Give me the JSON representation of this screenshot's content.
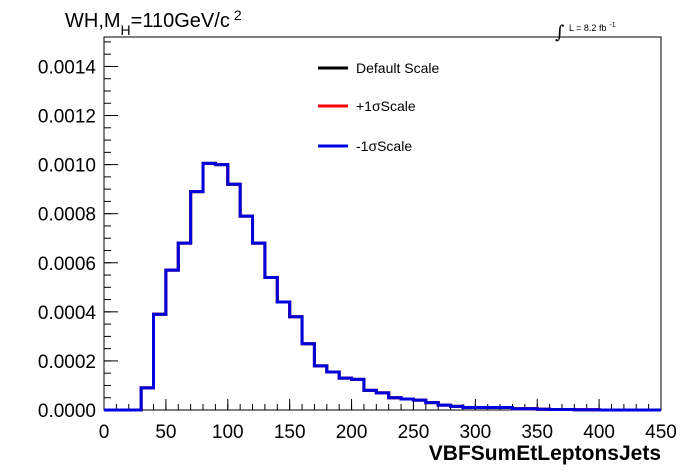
{
  "chart_data": {
    "type": "line",
    "title": "WH,M",
    "title_sub": "H",
    "title_rest": "=110GeV/c",
    "title_sup": "2",
    "lumi_label": "L = 8.2 fb",
    "lumi_sup": "-1",
    "lumi_integral": "∫",
    "xlabel": "VBFSumEtLeptonsJets",
    "ylabel": "",
    "xlim": [
      0,
      450
    ],
    "ylim": [
      0,
      0.00152
    ],
    "xticks": [
      "0",
      "50",
      "100",
      "150",
      "200",
      "250",
      "300",
      "350",
      "400",
      "450"
    ],
    "yticks": [
      "0.0000",
      "0.0002",
      "0.0004",
      "0.0006",
      "0.0008",
      "0.0010",
      "0.0012",
      "0.0014"
    ],
    "grid": false,
    "legend_position": "top-center",
    "bin_edges": [
      0,
      10,
      20,
      30,
      40,
      50,
      60,
      70,
      80,
      90,
      100,
      110,
      120,
      130,
      140,
      150,
      160,
      170,
      180,
      190,
      200,
      210,
      220,
      230,
      240,
      250,
      260,
      270,
      280,
      290,
      300,
      310,
      320,
      330,
      340,
      350,
      360,
      370,
      380,
      390,
      400,
      410,
      420,
      430,
      440,
      450
    ],
    "series": [
      {
        "name": "Default Scale",
        "color": "#000000",
        "values": [
          0,
          0,
          0,
          9e-05,
          0.00039,
          0.00057,
          0.00068,
          0.00089,
          0.001005,
          0.001,
          0.00092,
          0.00079,
          0.00068,
          0.00054,
          0.00044,
          0.00038,
          0.00027,
          0.00018,
          0.000155,
          0.00013,
          0.000125,
          8e-05,
          7e-05,
          5e-05,
          4.5e-05,
          4e-05,
          3e-05,
          2e-05,
          1.5e-05,
          1e-05,
          1e-05,
          1e-05,
          1e-05,
          5e-06,
          5e-06,
          3e-06,
          2e-06,
          2e-06,
          1e-06,
          1e-06,
          0,
          0,
          0,
          0,
          0
        ]
      },
      {
        "name": "+1σScale",
        "color": "#ff0000",
        "values": [
          0,
          0,
          0,
          9e-05,
          0.00039,
          0.00057,
          0.00068,
          0.00089,
          0.001005,
          0.001,
          0.00092,
          0.00079,
          0.00068,
          0.00054,
          0.00044,
          0.00038,
          0.00027,
          0.00018,
          0.000155,
          0.00013,
          0.000125,
          8e-05,
          7e-05,
          5e-05,
          4.5e-05,
          4e-05,
          3e-05,
          2e-05,
          1.5e-05,
          1e-05,
          1e-05,
          1e-05,
          1e-05,
          5e-06,
          5e-06,
          3e-06,
          2e-06,
          2e-06,
          1e-06,
          1e-06,
          0,
          0,
          0,
          0,
          0
        ]
      },
      {
        "name": "-1σScale",
        "color": "#0000dd",
        "values": [
          0,
          0,
          0,
          9e-05,
          0.00039,
          0.00057,
          0.00068,
          0.00089,
          0.001005,
          0.001,
          0.00092,
          0.00079,
          0.00068,
          0.00054,
          0.00044,
          0.00038,
          0.00027,
          0.00018,
          0.000155,
          0.00013,
          0.000125,
          8e-05,
          7e-05,
          5e-05,
          4.5e-05,
          4e-05,
          3e-05,
          2e-05,
          1.5e-05,
          1e-05,
          1e-05,
          1e-05,
          1e-05,
          5e-06,
          5e-06,
          3e-06,
          2e-06,
          2e-06,
          1e-06,
          1e-06,
          0,
          0,
          0,
          0,
          0
        ]
      }
    ]
  }
}
